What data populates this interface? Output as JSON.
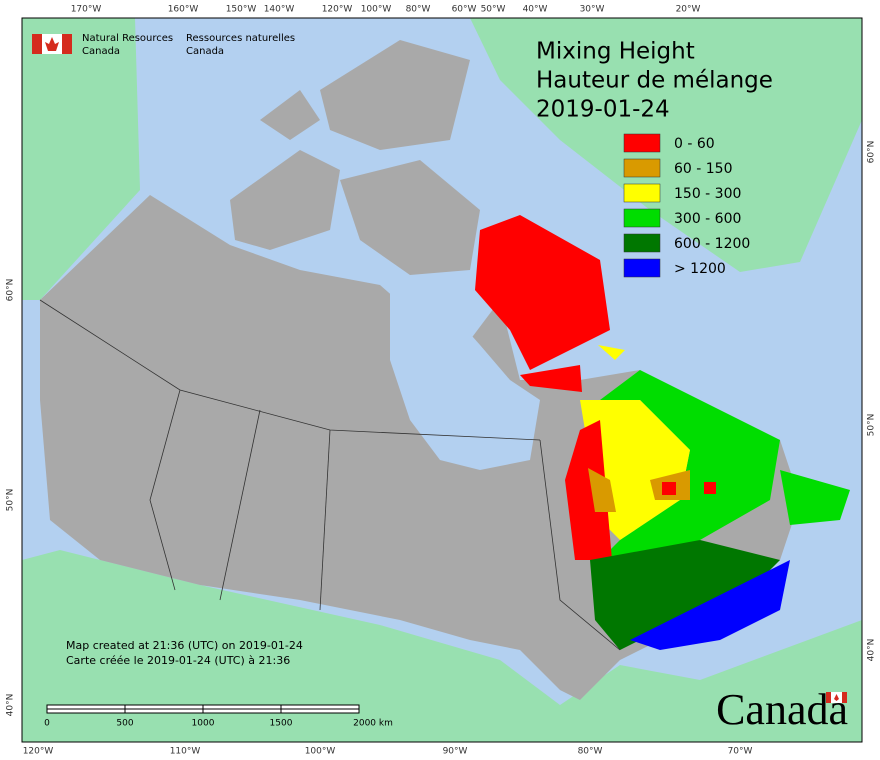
{
  "header": {
    "agency_en": [
      "Natural Resources",
      "Canada"
    ],
    "agency_fr": [
      "Ressources naturelles",
      "Canada"
    ]
  },
  "title": [
    "Mixing Height",
    "Hauteur de mélange",
    "2019-01-24"
  ],
  "legend": {
    "items": [
      {
        "label": "0 - 60",
        "color": "#ff0000"
      },
      {
        "label": "60 - 150",
        "color": "#d99a00"
      },
      {
        "label": "150 - 300",
        "color": "#ffff00"
      },
      {
        "label": "300 - 600",
        "color": "#00dd00"
      },
      {
        "label": "600 - 1200",
        "color": "#007700"
      },
      {
        "label": "> 1200",
        "color": "#0000ff"
      }
    ]
  },
  "footer": [
    "Map created at 21:36 (UTC) on 2019-01-24",
    "Carte créée le 2019-01-24 (UTC) à 21:36"
  ],
  "scale_bar": {
    "labels": [
      "0",
      "500",
      "1000",
      "1500",
      "2000 km"
    ]
  },
  "graticule": {
    "top": [
      "170°W",
      "160°W",
      "150°W",
      "140°W",
      "120°W",
      "100°W",
      "80°W",
      "60°W",
      "50°W",
      "40°W",
      "30°W",
      "20°W"
    ],
    "bottom": [
      "120°W",
      "110°W",
      "100°W",
      "90°W",
      "80°W",
      "70°W"
    ],
    "left": [
      "60°N",
      "50°N",
      "40°N"
    ],
    "right": [
      "60°N",
      "50°N",
      "40°N"
    ]
  },
  "wordmark": "Canada"
}
